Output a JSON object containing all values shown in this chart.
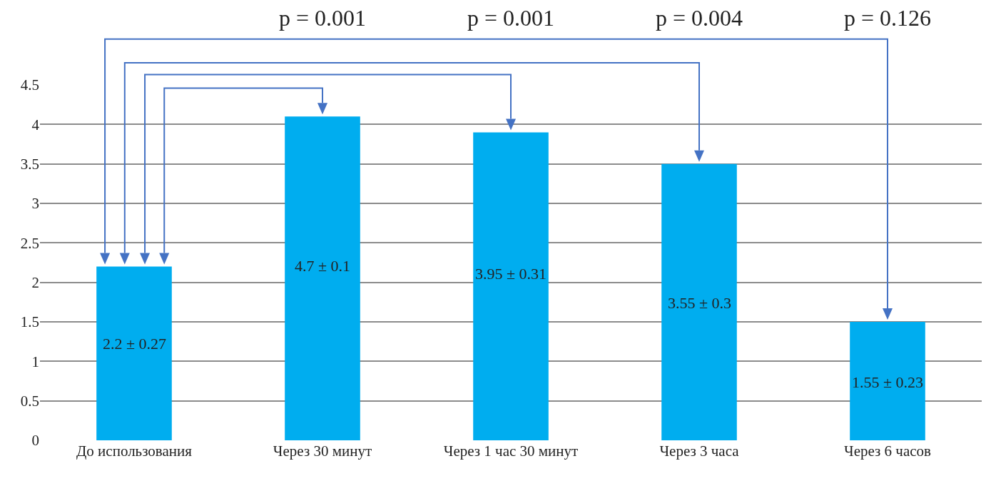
{
  "chart_data": {
    "type": "bar",
    "categories": [
      "До использования",
      "Через 30 минут",
      "Через 1 час 30 минут",
      "Через 3 часа",
      "Через 6 часов"
    ],
    "values": [
      2.2,
      4.1,
      3.9,
      3.5,
      1.5
    ],
    "color": "#00adef",
    "ylim": [
      0,
      4.5
    ],
    "yticks": [
      0,
      0.5,
      1,
      1.5,
      2,
      2.5,
      3,
      3.5,
      4,
      4.5
    ],
    "grid": "y",
    "annotations": [
      "p = 0.001",
      "p = 0.001",
      "p = 0.004",
      "p = 0.126",
      "2.2 ± 0.27",
      "4.7 ± 0.1",
      "3.95 ± 0.31",
      "3.55 ± 0.3",
      "1.55 ± 0.23"
    ]
  }
}
